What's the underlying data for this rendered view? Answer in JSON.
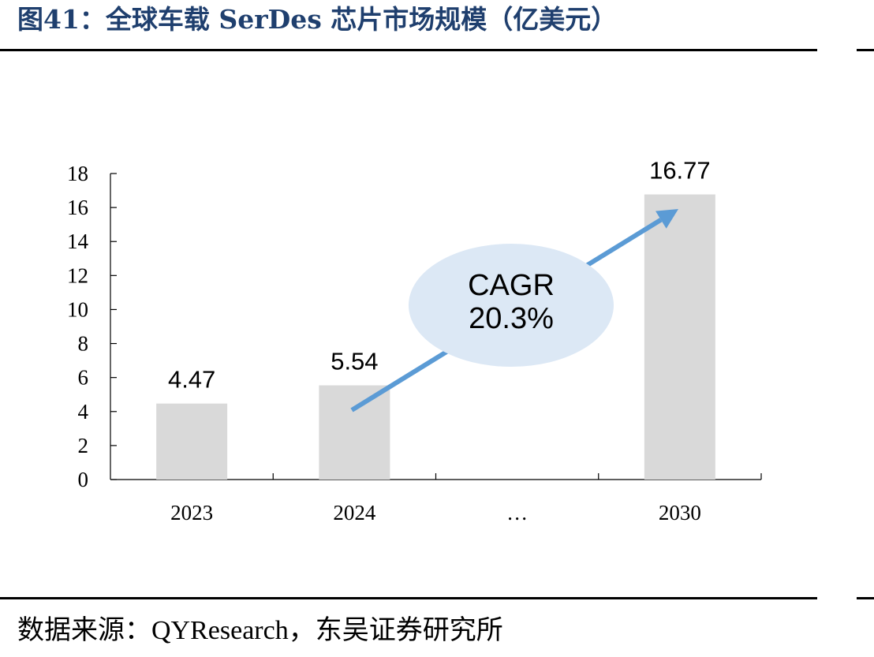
{
  "header": {
    "title": "图41：全球车载 SerDes 芯片市场规模（亿美元）"
  },
  "footer": {
    "source": "数据来源：QYResearch，东吴证券研究所"
  },
  "chart_data": {
    "type": "bar",
    "categories": [
      "2023",
      "2024",
      "…",
      "2030"
    ],
    "values": [
      4.47,
      5.54,
      null,
      16.77
    ],
    "data_labels": [
      "4.47",
      "5.54",
      "",
      "16.77"
    ],
    "y_ticks": [
      "0",
      "2",
      "4",
      "6",
      "8",
      "10",
      "12",
      "14",
      "16",
      "18"
    ],
    "ylim": [
      0,
      18
    ],
    "bar_color": "#d9d9d9",
    "grid": false,
    "annotation": {
      "lines": [
        "CAGR",
        "20.3%"
      ],
      "bubble_color": "#dce8f5",
      "arrow_color": "#5b9bd5"
    }
  }
}
